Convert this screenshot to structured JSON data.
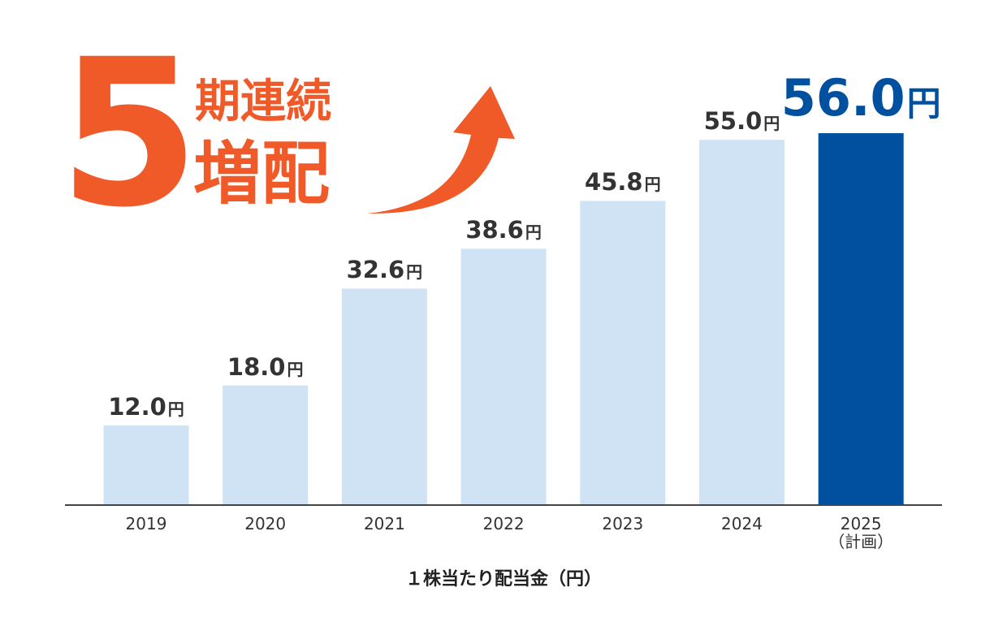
{
  "headline": {
    "number": "5",
    "line1": "期連続",
    "line2": "増配"
  },
  "colors": {
    "accent": "#F05A28",
    "bar": "#D0E3F4",
    "highlight_bar": "#0050A0",
    "axis": "#444444"
  },
  "chart_data": {
    "type": "bar",
    "categories": [
      "2019",
      "2020",
      "2021",
      "2022",
      "2023",
      "2024",
      "2025"
    ],
    "category_notes": [
      "",
      "",
      "",
      "",
      "",
      "",
      "（計画）"
    ],
    "values": [
      12.0,
      18.0,
      32.6,
      38.6,
      45.8,
      55.0,
      56.0
    ],
    "value_labels": [
      "12.0",
      "18.0",
      "32.6",
      "38.6",
      "45.8",
      "55.0",
      "56.0"
    ],
    "unit": "円",
    "highlight_index": 6,
    "xlabel": "１株当たり配当金（円）",
    "ylabel": "",
    "ylim": [
      0,
      56
    ],
    "grid": false,
    "legend": "none"
  }
}
